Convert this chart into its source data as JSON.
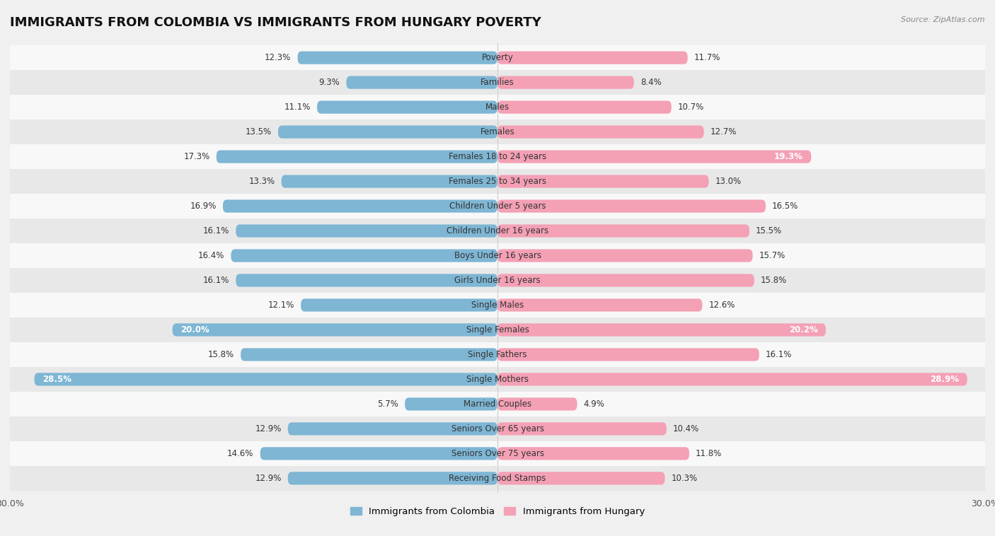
{
  "title": "IMMIGRANTS FROM COLOMBIA VS IMMIGRANTS FROM HUNGARY POVERTY",
  "source": "Source: ZipAtlas.com",
  "categories": [
    "Poverty",
    "Families",
    "Males",
    "Females",
    "Females 18 to 24 years",
    "Females 25 to 34 years",
    "Children Under 5 years",
    "Children Under 16 years",
    "Boys Under 16 years",
    "Girls Under 16 years",
    "Single Males",
    "Single Females",
    "Single Fathers",
    "Single Mothers",
    "Married Couples",
    "Seniors Over 65 years",
    "Seniors Over 75 years",
    "Receiving Food Stamps"
  ],
  "colombia_values": [
    12.3,
    9.3,
    11.1,
    13.5,
    17.3,
    13.3,
    16.9,
    16.1,
    16.4,
    16.1,
    12.1,
    20.0,
    15.8,
    28.5,
    5.7,
    12.9,
    14.6,
    12.9
  ],
  "hungary_values": [
    11.7,
    8.4,
    10.7,
    12.7,
    19.3,
    13.0,
    16.5,
    15.5,
    15.7,
    15.8,
    12.6,
    20.2,
    16.1,
    28.9,
    4.9,
    10.4,
    11.8,
    10.3
  ],
  "colombia_color": "#7eb6d4",
  "hungary_color": "#f4a0b5",
  "background_color": "#f0f0f0",
  "row_color_odd": "#f8f8f8",
  "row_color_even": "#e8e8e8",
  "max_val": 30.0,
  "legend_colombia": "Immigrants from Colombia",
  "legend_hungary": "Immigrants from Hungary",
  "title_fontsize": 13,
  "cat_fontsize": 8.5,
  "value_fontsize": 8.5,
  "bar_height": 0.52,
  "inside_label_threshold": 18.0
}
